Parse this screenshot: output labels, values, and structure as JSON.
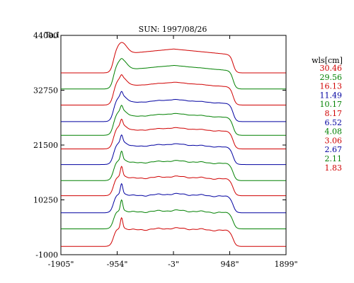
{
  "chart_data": {
    "type": "line",
    "title": "SUN: 1997/08/26",
    "ylabel": "Ta,I",
    "xlabel": "",
    "x_tick_labels": [
      "-1905\"",
      "-954\"",
      "-3\"",
      "948\"",
      "1899\""
    ],
    "x_ticks": [
      -1905,
      -954,
      -3,
      948,
      1899
    ],
    "y_tick_labels": [
      "44000",
      "32750",
      "21500",
      "10250",
      "-1000"
    ],
    "y_ticks": [
      44000,
      32750,
      21500,
      10250,
      -1000
    ],
    "xlim": [
      -1905,
      1899
    ],
    "ylim": [
      -1000,
      44000
    ],
    "grid": false,
    "legend_title": "wls[cm]",
    "legend_position": "right",
    "series": [
      {
        "name": "30.46",
        "color": "#d00000",
        "offset": 36300,
        "center_amp": 3600,
        "limb": 0
      },
      {
        "name": "29.56",
        "color": "#008000",
        "offset": 33000,
        "center_amp": 3600,
        "limb": 0.1
      },
      {
        "name": "16.13",
        "color": "#d00000",
        "offset": 29700,
        "center_amp": 3550,
        "limb": 0.25
      },
      {
        "name": "11.49",
        "color": "#0000a0",
        "offset": 26300,
        "center_amp": 3500,
        "limb": 0.4
      },
      {
        "name": "10.17",
        "color": "#008000",
        "offset": 23500,
        "center_amp": 3450,
        "limb": 0.45
      },
      {
        "name": "8.17",
        "color": "#d00000",
        "offset": 20700,
        "center_amp": 3400,
        "limb": 0.55
      },
      {
        "name": "6.52",
        "color": "#0000a0",
        "offset": 17500,
        "center_amp": 3350,
        "limb": 0.65
      },
      {
        "name": "4.08",
        "color": "#008000",
        "offset": 14200,
        "center_amp": 3300,
        "limb": 0.8
      },
      {
        "name": "3.06",
        "color": "#d00000",
        "offset": 11100,
        "center_amp": 3250,
        "limb": 0.9
      },
      {
        "name": "2.67",
        "color": "#0000a0",
        "offset": 7600,
        "center_amp": 3200,
        "limb": 0.95
      },
      {
        "name": "2.11",
        "color": "#008000",
        "offset": 4300,
        "center_amp": 3150,
        "limb": 1.0
      },
      {
        "name": "1.83",
        "color": "#d00000",
        "offset": 700,
        "center_amp": 3100,
        "limb": 1.0
      }
    ]
  }
}
